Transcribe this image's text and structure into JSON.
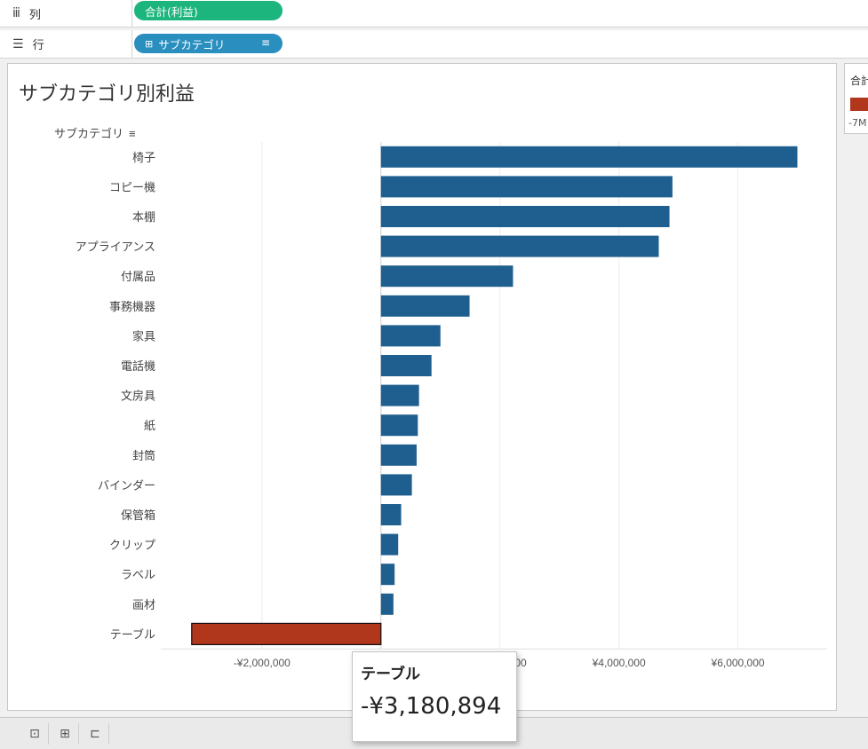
{
  "shelves": {
    "columns": {
      "label": "列",
      "icon": "columns-icon",
      "pill": "合計(利益)"
    },
    "rows": {
      "label": "行",
      "icon": "rows-icon",
      "pill": "サブカテゴリ"
    }
  },
  "sheet": {
    "title": "サブカテゴリ別利益"
  },
  "legend": {
    "title": "合計",
    "label": "-7M"
  },
  "tooltip": {
    "name": "テーブル",
    "value": "-¥3,180,894"
  },
  "colors": {
    "positive": "#1f5f8f",
    "negative": "#b0361c",
    "accent_green": "#1db57e",
    "accent_blue": "#2a8fbf"
  },
  "chart_data": {
    "type": "bar",
    "orientation": "horizontal",
    "title": "サブカテゴリ別利益",
    "ylabel": "サブカテゴリ",
    "categories": [
      "椅子",
      "コピー機",
      "本棚",
      "アプライアンス",
      "付属品",
      "事務機器",
      "家具",
      "電話機",
      "文房具",
      "紙",
      "封筒",
      "バインダー",
      "保管箱",
      "クリップ",
      "ラベル",
      "画材",
      "テーブル"
    ],
    "values": [
      7000000,
      4900000,
      4850000,
      4670000,
      2220000,
      1490000,
      1000000,
      850000,
      640000,
      620000,
      600000,
      520000,
      340000,
      290000,
      230000,
      210000,
      -3180894
    ],
    "xlim": [
      -3700000,
      7500000
    ],
    "xticks": [
      -2000000,
      0,
      2000000,
      4000000,
      6000000
    ],
    "xtick_labels": [
      "-¥2,000,000",
      "¥0",
      "¥2,000,000",
      "¥4,000,000",
      "¥6,000,000"
    ],
    "grid": true,
    "highlighted": "テーブル"
  }
}
